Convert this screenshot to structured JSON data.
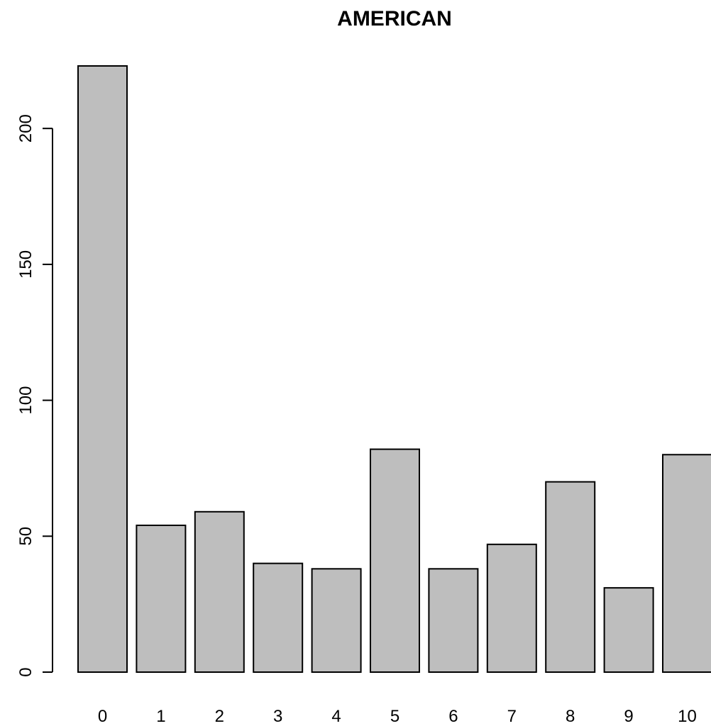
{
  "chart_data": {
    "type": "bar",
    "title": "AMERICAN",
    "xlabel": "",
    "ylabel": "",
    "categories": [
      "0",
      "1",
      "2",
      "3",
      "4",
      "5",
      "6",
      "7",
      "8",
      "9",
      "10"
    ],
    "values": [
      223,
      54,
      59,
      40,
      38,
      82,
      38,
      47,
      70,
      31,
      80
    ],
    "ylim": [
      0,
      223
    ],
    "yticks": [
      "0",
      "50",
      "100",
      "150",
      "200"
    ],
    "grid": false,
    "legend": "none",
    "colors": {
      "bar_fill": "#bebebe",
      "bar_stroke": "#000000",
      "axis": "#000000",
      "text": "#000000"
    }
  }
}
